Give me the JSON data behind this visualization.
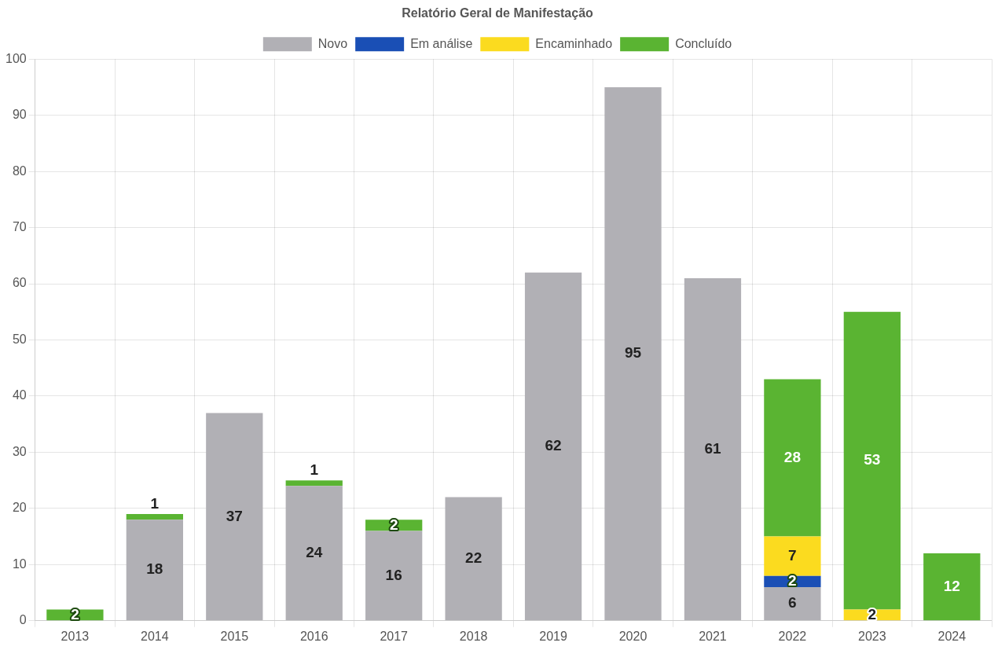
{
  "chart_data": {
    "type": "bar",
    "title": "Relatório Geral de Manifestação",
    "stacked": true,
    "categories": [
      "2013",
      "2014",
      "2015",
      "2016",
      "2017",
      "2018",
      "2019",
      "2020",
      "2021",
      "2022",
      "2023",
      "2024"
    ],
    "series": [
      {
        "name": "Novo",
        "color": "#b1b0b5",
        "values": [
          null,
          18,
          37,
          24,
          16,
          22,
          62,
          95,
          61,
          6,
          null,
          null
        ]
      },
      {
        "name": "Em análise",
        "color": "#1a4fb5",
        "values": [
          null,
          null,
          null,
          null,
          null,
          null,
          null,
          null,
          null,
          2,
          null,
          null
        ]
      },
      {
        "name": "Encaminhado",
        "color": "#fbdb1f",
        "values": [
          null,
          null,
          null,
          null,
          null,
          null,
          null,
          null,
          null,
          7,
          2,
          null
        ]
      },
      {
        "name": "Concluído",
        "color": "#5ab432",
        "values": [
          2,
          1,
          null,
          1,
          2,
          null,
          null,
          null,
          null,
          28,
          53,
          12
        ]
      }
    ],
    "ylim": [
      0,
      100
    ],
    "yticks": [
      0,
      10,
      20,
      30,
      40,
      50,
      60,
      70,
      80,
      90,
      100
    ],
    "grid": true,
    "legend": "top",
    "data_labels": true
  }
}
